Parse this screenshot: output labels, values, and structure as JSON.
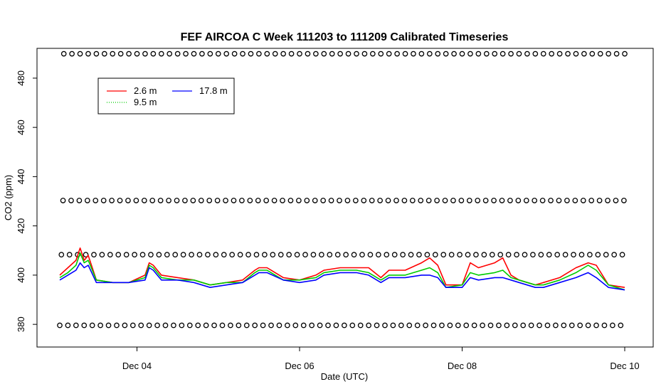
{
  "chart_data": {
    "type": "line",
    "title": "FEF AIRCOA C  Week 111203 to 111209  Calibrated Timeseries",
    "xlabel": "Date (UTC)",
    "ylabel": "CO2 (ppm)",
    "x_tick_labels": [
      "Dec 04",
      "Dec 06",
      "Dec 08",
      "Dec 10"
    ],
    "x_tick_values": [
      4,
      6,
      8,
      10
    ],
    "y_tick_labels": [
      "380",
      "400",
      "420",
      "440",
      "460",
      "480"
    ],
    "y_tick_values": [
      380,
      400,
      420,
      440,
      460,
      480
    ],
    "xlim": [
      2.77,
      10.35
    ],
    "ylim": [
      370.8,
      492.1
    ],
    "legend": {
      "placement": "top-left",
      "entries": [
        {
          "label": "2.6 m",
          "color": "#ff0000",
          "style": "solid"
        },
        {
          "label": "9.5 m",
          "color": "#00cc00",
          "style": "dotted"
        },
        {
          "label": "17.8 m",
          "color": "#0000ff",
          "style": "solid"
        }
      ]
    },
    "series": [
      {
        "name": "2.6 m",
        "color": "#ff0000",
        "x": [
          3.05,
          3.15,
          3.25,
          3.3,
          3.35,
          3.4,
          3.5,
          3.7,
          3.9,
          4.1,
          4.15,
          4.2,
          4.3,
          4.5,
          4.7,
          4.9,
          5.1,
          5.3,
          5.45,
          5.5,
          5.6,
          5.8,
          6.0,
          6.2,
          6.3,
          6.5,
          6.7,
          6.85,
          7.0,
          7.1,
          7.3,
          7.5,
          7.6,
          7.7,
          7.8,
          8.0,
          8.1,
          8.2,
          8.4,
          8.5,
          8.6,
          8.7,
          8.9,
          9.0,
          9.2,
          9.4,
          9.55,
          9.65,
          9.8,
          10.0
        ],
        "y": [
          400,
          403,
          406,
          411,
          406,
          408,
          398,
          397,
          397,
          400,
          405,
          404,
          400,
          399,
          398,
          396,
          397,
          398,
          402,
          403,
          403,
          399,
          398,
          400,
          402,
          403,
          403,
          403,
          399,
          402,
          402,
          405,
          407,
          404,
          396,
          396,
          405,
          403,
          405,
          407,
          400,
          398,
          396,
          397,
          399,
          403,
          405,
          404,
          396,
          395
        ]
      },
      {
        "name": "9.5 m",
        "color": "#00cc00",
        "x": [
          3.05,
          3.15,
          3.25,
          3.3,
          3.35,
          3.4,
          3.5,
          3.7,
          3.9,
          4.1,
          4.15,
          4.2,
          4.3,
          4.5,
          4.7,
          4.9,
          5.1,
          5.3,
          5.45,
          5.5,
          5.6,
          5.8,
          6.0,
          6.2,
          6.3,
          6.5,
          6.7,
          6.85,
          7.0,
          7.1,
          7.3,
          7.5,
          7.6,
          7.7,
          7.8,
          8.0,
          8.1,
          8.2,
          8.4,
          8.5,
          8.6,
          8.7,
          8.9,
          9.0,
          9.2,
          9.4,
          9.55,
          9.65,
          9.8,
          10.0
        ],
        "y": [
          399,
          401,
          404,
          409,
          405,
          406,
          398,
          397,
          397,
          399,
          404,
          403,
          399,
          398,
          398,
          396,
          397,
          397,
          401,
          402,
          402,
          398,
          398,
          399,
          401,
          402,
          402,
          401,
          398,
          400,
          400,
          402,
          403,
          401,
          395,
          396,
          401,
          400,
          401,
          402,
          399,
          398,
          396,
          396,
          398,
          401,
          404,
          402,
          396,
          394
        ]
      },
      {
        "name": "17.8 m",
        "color": "#0000ff",
        "x": [
          3.05,
          3.15,
          3.25,
          3.3,
          3.35,
          3.4,
          3.5,
          3.7,
          3.9,
          4.1,
          4.15,
          4.2,
          4.3,
          4.5,
          4.7,
          4.9,
          5.1,
          5.3,
          5.45,
          5.5,
          5.6,
          5.8,
          6.0,
          6.2,
          6.3,
          6.5,
          6.7,
          6.85,
          7.0,
          7.1,
          7.3,
          7.5,
          7.6,
          7.7,
          7.8,
          8.0,
          8.1,
          8.2,
          8.4,
          8.5,
          8.6,
          8.7,
          8.9,
          9.0,
          9.2,
          9.4,
          9.55,
          9.65,
          9.8,
          10.0
        ],
        "y": [
          398,
          400,
          402,
          405,
          403,
          404,
          397,
          397,
          397,
          398,
          403,
          402,
          398,
          398,
          397,
          395,
          396,
          397,
          400,
          401,
          401,
          398,
          397,
          398,
          400,
          401,
          401,
          400,
          397,
          399,
          399,
          400,
          400,
          399,
          395,
          395,
          399,
          398,
          399,
          399,
          398,
          397,
          395,
          395,
          397,
          399,
          401,
          399,
          395,
          394
        ]
      }
    ],
    "calibration_markers": {
      "marker": "circle",
      "levels": [
        {
          "y": 489.9,
          "x_start": 3.1,
          "x_end": 10.0,
          "step": 0.1
        },
        {
          "y": 430.3,
          "x_start": 3.09,
          "x_end": 10.0,
          "step": 0.1
        },
        {
          "y": 408.3,
          "x_start": 3.07,
          "x_end": 10.0,
          "step": 0.1
        },
        {
          "y": 379.6,
          "x_start": 3.05,
          "x_end": 10.0,
          "step": 0.1
        }
      ]
    }
  }
}
